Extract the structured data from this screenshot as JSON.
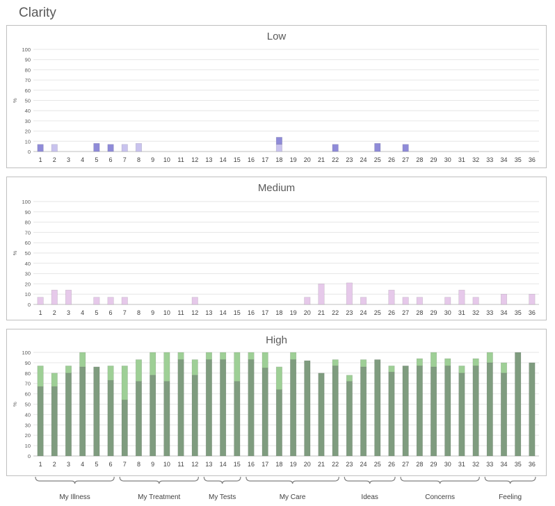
{
  "page": {
    "title": "Clarity"
  },
  "chart_data": [
    {
      "type": "bar",
      "title": "Low",
      "ylabel": "%",
      "ylim": [
        0,
        100
      ],
      "yticks": [
        0,
        10,
        20,
        30,
        40,
        50,
        60,
        70,
        80,
        90,
        100
      ],
      "categories": [
        "1",
        "2",
        "3",
        "4",
        "5",
        "6",
        "7",
        "8",
        "9",
        "10",
        "11",
        "12",
        "13",
        "14",
        "15",
        "16",
        "17",
        "18",
        "19",
        "20",
        "21",
        "22",
        "23",
        "24",
        "25",
        "26",
        "27",
        "28",
        "29",
        "30",
        "31",
        "32",
        "33",
        "34",
        "35",
        "36"
      ],
      "grid": true,
      "stacked": true,
      "series": [
        {
          "color": "#c9c3ee",
          "values": [
            0,
            7,
            0,
            0,
            0,
            0,
            7,
            8,
            0,
            0,
            0,
            0,
            0,
            0,
            0,
            0,
            0,
            7,
            0,
            0,
            0,
            0,
            0,
            0,
            0,
            0,
            0,
            0,
            0,
            0,
            0,
            0,
            0,
            0,
            0,
            0
          ]
        },
        {
          "color": "#8f8bd8",
          "values": [
            7,
            0,
            0,
            0,
            8,
            7,
            0,
            0,
            0,
            0,
            0,
            0,
            0,
            0,
            0,
            0,
            0,
            7,
            0,
            0,
            0,
            7,
            0,
            0,
            8,
            0,
            7,
            0,
            0,
            0,
            0,
            0,
            0,
            0,
            0,
            0
          ]
        }
      ]
    },
    {
      "type": "bar",
      "title": "Medium",
      "ylabel": "%",
      "ylim": [
        0,
        100
      ],
      "yticks": [
        0,
        10,
        20,
        30,
        40,
        50,
        60,
        70,
        80,
        90,
        100
      ],
      "categories": [
        "1",
        "2",
        "3",
        "4",
        "5",
        "6",
        "7",
        "8",
        "9",
        "10",
        "11",
        "12",
        "13",
        "14",
        "15",
        "16",
        "17",
        "18",
        "19",
        "20",
        "21",
        "22",
        "23",
        "24",
        "25",
        "26",
        "27",
        "28",
        "29",
        "30",
        "31",
        "32",
        "33",
        "34",
        "35",
        "36"
      ],
      "grid": true,
      "stacked": true,
      "series": [
        {
          "color": "#e6c9ea",
          "values": [
            7,
            14,
            14,
            0,
            7,
            7,
            7,
            0,
            0,
            0,
            0,
            7,
            0,
            0,
            0,
            0,
            0,
            0,
            0,
            7,
            20,
            0,
            21,
            7,
            0,
            14,
            7,
            7,
            0,
            7,
            14,
            7,
            0,
            10,
            0,
            10
          ]
        }
      ]
    },
    {
      "type": "bar",
      "title": "High",
      "ylabel": "%",
      "ylim": [
        0,
        100
      ],
      "yticks": [
        0,
        10,
        20,
        30,
        40,
        50,
        60,
        70,
        80,
        90,
        100
      ],
      "categories": [
        "1",
        "2",
        "3",
        "4",
        "5",
        "6",
        "7",
        "8",
        "9",
        "10",
        "11",
        "12",
        "13",
        "14",
        "15",
        "16",
        "17",
        "18",
        "19",
        "20",
        "21",
        "22",
        "23",
        "24",
        "25",
        "26",
        "27",
        "28",
        "29",
        "30",
        "31",
        "32",
        "33",
        "34",
        "35",
        "36"
      ],
      "grid": true,
      "stacked": true,
      "series": [
        {
          "color": "#7f9c7f",
          "values": [
            67,
            67,
            80,
            86,
            86,
            73,
            54,
            72,
            78,
            72,
            93,
            78,
            93,
            93,
            72,
            93,
            85,
            64,
            93,
            92,
            80,
            87,
            72,
            86,
            93,
            81,
            87,
            87,
            86,
            87,
            80,
            87,
            90,
            80,
            100,
            90
          ]
        },
        {
          "color": "#9ecf96",
          "values": [
            20,
            13,
            7,
            14,
            0,
            14,
            33,
            21,
            22,
            28,
            7,
            15,
            7,
            7,
            28,
            7,
            15,
            22,
            7,
            0,
            0,
            6,
            6,
            7,
            0,
            6,
            0,
            7,
            14,
            7,
            7,
            7,
            10,
            10,
            0,
            0
          ]
        }
      ],
      "groups": [
        {
          "label": "My Illness",
          "from": 1,
          "to": 6
        },
        {
          "label": "My Treatment",
          "from": 7,
          "to": 12
        },
        {
          "label": "My Tests",
          "from": 13,
          "to": 15
        },
        {
          "label": "My Care",
          "from": 16,
          "to": 22
        },
        {
          "label": "Ideas",
          "from": 23,
          "to": 26
        },
        {
          "label": "Concerns",
          "from": 27,
          "to": 32
        },
        {
          "label": "Feeling",
          "from": 33,
          "to": 36
        }
      ]
    }
  ]
}
